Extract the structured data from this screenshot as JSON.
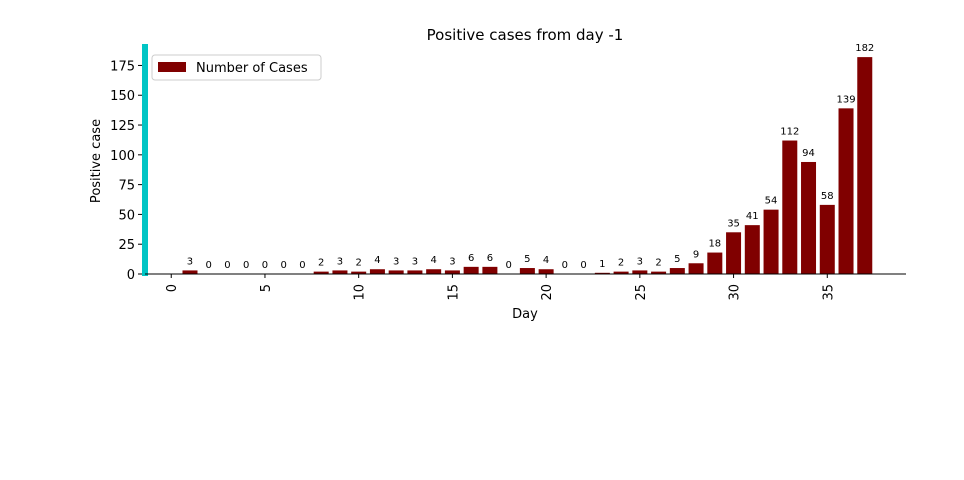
{
  "chart_data": {
    "type": "bar",
    "title": "Positive cases from day -1",
    "xlabel": "Day",
    "ylabel": "Positive case",
    "x": [
      1,
      2,
      3,
      4,
      5,
      6,
      7,
      8,
      9,
      10,
      11,
      12,
      13,
      14,
      15,
      16,
      17,
      18,
      19,
      20,
      21,
      22,
      23,
      24,
      25,
      26,
      27,
      28,
      29,
      30,
      31,
      32,
      33,
      34,
      35,
      36,
      37
    ],
    "values": [
      3,
      0,
      0,
      0,
      0,
      0,
      0,
      2,
      3,
      2,
      4,
      3,
      3,
      4,
      3,
      6,
      6,
      0,
      5,
      4,
      0,
      0,
      1,
      2,
      3,
      2,
      5,
      9,
      18,
      35,
      41,
      54,
      112,
      94,
      58,
      139,
      182
    ],
    "xlim": [
      -1.4,
      39.2
    ],
    "ylim": [
      0,
      193
    ],
    "xticks": [
      0,
      5,
      10,
      15,
      20,
      25,
      30,
      35
    ],
    "yticks": [
      0,
      25,
      50,
      75,
      100,
      125,
      150,
      175
    ],
    "legend": {
      "label": "Number of Cases",
      "placement": "top-left"
    },
    "grid": false,
    "colors": {
      "bar": "#800000",
      "left_spine": "#00c5c5",
      "axis": "#000000"
    }
  }
}
